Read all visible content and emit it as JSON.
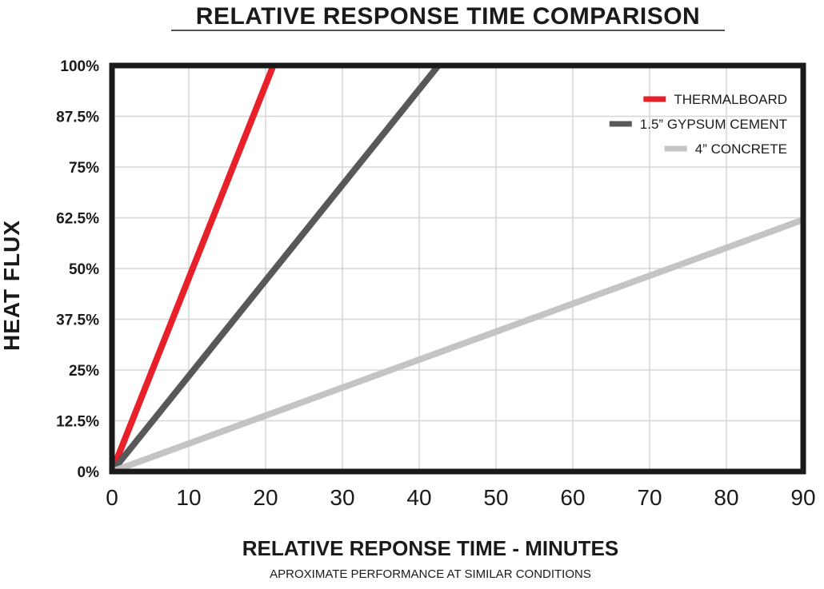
{
  "chart_data": {
    "type": "line",
    "title": "RELATIVE RESPONSE TIME COMPARISON",
    "xlabel": "RELATIVE REPONSE TIME - MINUTES",
    "ylabel": "HEAT FLUX",
    "subtitle": "APROXIMATE PERFORMANCE AT SIMILAR CONDITIONS",
    "xlim": [
      0,
      90
    ],
    "ylim": [
      0,
      100
    ],
    "x_ticks": [
      0,
      10,
      20,
      30,
      40,
      50,
      60,
      70,
      80,
      90
    ],
    "x_tick_labels": [
      "0",
      "10",
      "20",
      "30",
      "40",
      "50",
      "60",
      "70",
      "80",
      "90"
    ],
    "y_ticks": [
      0,
      12.5,
      25,
      37.5,
      50,
      62.5,
      75,
      87.5,
      100
    ],
    "y_tick_labels": [
      "0%",
      "12.5%",
      "25%",
      "37.5%",
      "50%",
      "62.5%",
      "75%",
      "87.5%",
      "100%"
    ],
    "grid": true,
    "legend_position": "top-right",
    "series": [
      {
        "name": "THERMALBOARD",
        "color": "#e8202a",
        "x": [
          0,
          21
        ],
        "y": [
          0,
          100
        ]
      },
      {
        "name": "1.5” GYPSUM CEMENT",
        "color": "#58585a",
        "x": [
          0,
          42.5
        ],
        "y": [
          0,
          100
        ]
      },
      {
        "name": "4” CONCRETE",
        "color": "#c4c4c4",
        "x": [
          0,
          90
        ],
        "y": [
          0,
          62
        ]
      }
    ]
  }
}
